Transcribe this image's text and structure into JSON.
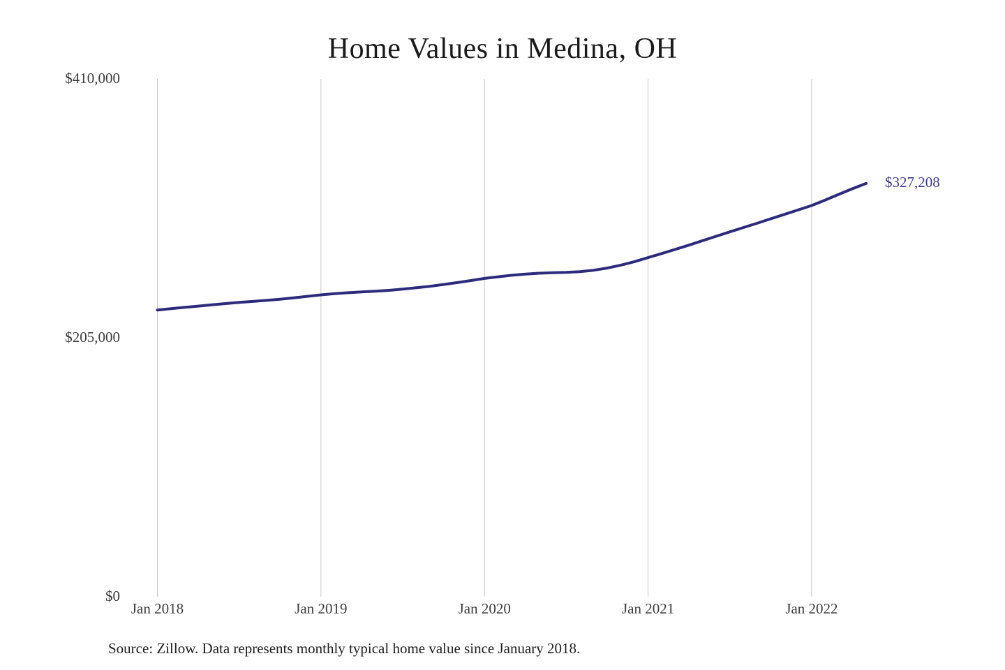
{
  "title": "Home Values in Medina, OH",
  "source_note": "Source: Zillow. Data represents monthly typical home value since January 2018.",
  "colors": {
    "line": "#2e2b7c",
    "annotation_text": "#3c3c8f",
    "gridline": "#c8c8c8",
    "title_text": "#1b1b1b",
    "axis_text": "#3c3c3c",
    "background": "#ffffff"
  },
  "chart_data": {
    "type": "line",
    "title": "Home Values in Medina, OH",
    "series_name": "Monthly typical home value (Zillow)",
    "xlabel": "",
    "ylabel": "",
    "ylim": [
      0,
      410000
    ],
    "grid": "vertical-only",
    "legend": "none",
    "x_tick_labels": [
      "Jan 2018",
      "Jan 2019",
      "Jan 2020",
      "Jan 2021",
      "Jan 2022"
    ],
    "y_tick_labels": [
      "$0",
      "$205,000",
      "$410,000"
    ],
    "y_tick_values": [
      0,
      205000,
      410000
    ],
    "last_value_label": "$327,208",
    "last_value": 327208,
    "months": [
      "2018-01",
      "2018-02",
      "2018-03",
      "2018-04",
      "2018-05",
      "2018-06",
      "2018-07",
      "2018-08",
      "2018-09",
      "2018-10",
      "2018-11",
      "2018-12",
      "2019-01",
      "2019-02",
      "2019-03",
      "2019-04",
      "2019-05",
      "2019-06",
      "2019-07",
      "2019-08",
      "2019-09",
      "2019-10",
      "2019-11",
      "2019-12",
      "2020-01",
      "2020-02",
      "2020-03",
      "2020-04",
      "2020-05",
      "2020-06",
      "2020-07",
      "2020-08",
      "2020-09",
      "2020-10",
      "2020-11",
      "2020-12",
      "2021-01",
      "2021-02",
      "2021-03",
      "2021-04",
      "2021-05",
      "2021-06",
      "2021-07",
      "2021-08",
      "2021-09",
      "2021-10",
      "2021-11",
      "2021-12",
      "2022-01",
      "2022-02",
      "2022-03",
      "2022-04",
      "2022-05"
    ],
    "values": [
      227000,
      228100,
      229100,
      230100,
      231100,
      232100,
      233000,
      233800,
      234600,
      235500,
      236600,
      237800,
      239000,
      239900,
      240700,
      241300,
      241900,
      242600,
      243500,
      244600,
      245800,
      247200,
      248700,
      250300,
      252000,
      253300,
      254500,
      255400,
      256100,
      256500,
      256800,
      257400,
      258500,
      260200,
      262500,
      265300,
      268500,
      271700,
      275000,
      278400,
      281900,
      285400,
      288900,
      292300,
      295700,
      299200,
      302700,
      306200,
      309700,
      314100,
      318600,
      323000,
      327208
    ]
  }
}
